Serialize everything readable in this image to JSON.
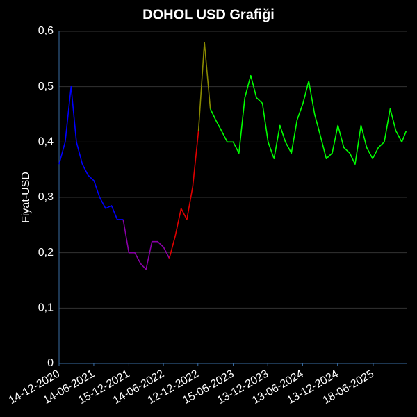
{
  "chart_data": {
    "type": "line",
    "title": "DOHOL USD Grafiği",
    "y_label": "Fiyat-USD",
    "x": [
      "2020-12-14",
      "2021-01-15",
      "2021-02-15",
      "2021-03-15",
      "2021-04-15",
      "2021-05-15",
      "2021-06-15",
      "2021-07-15",
      "2021-08-15",
      "2021-09-15",
      "2021-10-15",
      "2021-11-15",
      "2021-12-15",
      "2022-01-15",
      "2022-02-15",
      "2022-03-15",
      "2022-04-15",
      "2022-05-15",
      "2022-06-15",
      "2022-07-15",
      "2022-08-15",
      "2022-09-15",
      "2022-10-15",
      "2022-11-15",
      "2022-12-15",
      "2023-01-15",
      "2023-02-15",
      "2023-03-15",
      "2023-04-15",
      "2023-05-15",
      "2023-06-15",
      "2023-07-15",
      "2023-08-15",
      "2023-09-15",
      "2023-10-15",
      "2023-11-15",
      "2023-12-15",
      "2024-01-15",
      "2024-02-15",
      "2024-03-15",
      "2024-04-15",
      "2024-05-15",
      "2024-06-15",
      "2024-07-15",
      "2024-08-15",
      "2024-09-15",
      "2024-10-15",
      "2024-11-15",
      "2024-12-15",
      "2025-01-15",
      "2025-02-15",
      "2025-03-15",
      "2025-04-15",
      "2025-05-15",
      "2025-06-15",
      "2025-07-15",
      "2025-08-15",
      "2025-09-15",
      "2025-10-15",
      "2025-11-15",
      "2025-12-08"
    ],
    "series": [
      {
        "color": "#0000ff",
        "values": [
          0.36,
          0.4,
          0.5,
          0.4,
          0.36,
          0.34,
          0.33,
          0.3,
          0.28,
          0.285,
          0.26,
          0.26,
          null,
          null,
          null,
          null,
          null,
          null,
          null,
          null,
          null,
          null,
          null,
          null,
          null,
          null,
          null,
          null,
          null,
          null,
          null,
          null,
          null,
          null,
          null,
          null,
          null,
          null,
          null,
          null,
          null,
          null,
          null,
          null,
          null,
          null,
          null,
          null,
          null,
          null,
          null,
          null,
          null,
          null,
          null,
          null,
          null,
          null,
          null,
          null,
          null
        ]
      },
      {
        "color": "#8a00a8",
        "values": [
          null,
          null,
          null,
          null,
          null,
          null,
          null,
          null,
          null,
          null,
          null,
          0.26,
          0.2,
          0.2,
          0.18,
          0.17,
          0.22,
          0.22,
          0.21,
          0.19,
          null,
          null,
          null,
          null,
          null,
          null,
          null,
          null,
          null,
          null,
          null,
          null,
          null,
          null,
          null,
          null,
          null,
          null,
          null,
          null,
          null,
          null,
          null,
          null,
          null,
          null,
          null,
          null,
          null,
          null,
          null,
          null,
          null,
          null,
          null,
          null,
          null,
          null,
          null,
          null,
          null
        ]
      },
      {
        "color": "#e00000",
        "values": [
          null,
          null,
          null,
          null,
          null,
          null,
          null,
          null,
          null,
          null,
          null,
          null,
          null,
          null,
          null,
          null,
          null,
          null,
          null,
          0.19,
          0.23,
          0.28,
          0.26,
          0.32,
          0.42,
          null,
          null,
          null,
          null,
          null,
          null,
          null,
          null,
          null,
          null,
          null,
          null,
          null,
          null,
          null,
          null,
          null,
          null,
          null,
          null,
          null,
          null,
          null,
          null,
          null,
          null,
          null,
          null,
          null,
          null,
          null,
          null,
          null,
          null,
          null,
          null
        ]
      },
      {
        "color": "#8a8a00",
        "values": [
          null,
          null,
          null,
          null,
          null,
          null,
          null,
          null,
          null,
          null,
          null,
          null,
          null,
          null,
          null,
          null,
          null,
          null,
          null,
          null,
          null,
          null,
          null,
          null,
          0.42,
          0.58,
          0.46,
          null,
          null,
          null,
          null,
          null,
          null,
          null,
          null,
          null,
          null,
          null,
          null,
          null,
          null,
          null,
          null,
          null,
          null,
          null,
          null,
          null,
          null,
          null,
          null,
          null,
          null,
          null,
          null,
          null,
          null,
          null,
          null,
          null,
          null
        ]
      },
      {
        "color": "#00ff00",
        "values": [
          null,
          null,
          null,
          null,
          null,
          null,
          null,
          null,
          null,
          null,
          null,
          null,
          null,
          null,
          null,
          null,
          null,
          null,
          null,
          null,
          null,
          null,
          null,
          null,
          null,
          null,
          0.46,
          0.44,
          0.42,
          0.4,
          0.4,
          0.38,
          0.48,
          0.52,
          0.48,
          0.47,
          0.4,
          0.37,
          0.43,
          0.4,
          0.38,
          0.44,
          0.47,
          0.51,
          0.45,
          0.41,
          0.37,
          0.38,
          0.43,
          0.39,
          0.38,
          0.36,
          0.43,
          0.39,
          0.37,
          0.39,
          0.4,
          0.46,
          0.42,
          0.4,
          0.42
        ]
      }
    ],
    "xlim": [
      "2020-12-14",
      "2025-12-10"
    ],
    "xticks": [
      {
        "value": "2020-12-14",
        "label": "14-12-2020"
      },
      {
        "value": "2021-06-14",
        "label": "14-06-2021"
      },
      {
        "value": "2021-12-15",
        "label": "15-12-2021"
      },
      {
        "value": "2022-06-14",
        "label": "14-06-2022"
      },
      {
        "value": "2022-12-12",
        "label": "12-12-2022"
      },
      {
        "value": "2023-06-15",
        "label": "15-06-2023"
      },
      {
        "value": "2023-12-13",
        "label": "13-12-2023"
      },
      {
        "value": "2024-06-13",
        "label": "13-06-2024"
      },
      {
        "value": "2024-12-13",
        "label": "13-12-2024"
      },
      {
        "value": "2025-06-18",
        "label": "18-06-2025"
      }
    ],
    "ylim": [
      0,
      0.6
    ],
    "yticks": [
      0,
      {
        "value": 0.1,
        "label": "0,1"
      },
      {
        "value": 0.2,
        "label": "0,2"
      },
      {
        "value": 0.3,
        "label": "0,3"
      },
      {
        "value": 0.4,
        "label": "0,4"
      },
      {
        "value": 0.5,
        "label": "0,5"
      },
      {
        "value": 0.6,
        "label": "0,6"
      }
    ],
    "grid": true
  }
}
